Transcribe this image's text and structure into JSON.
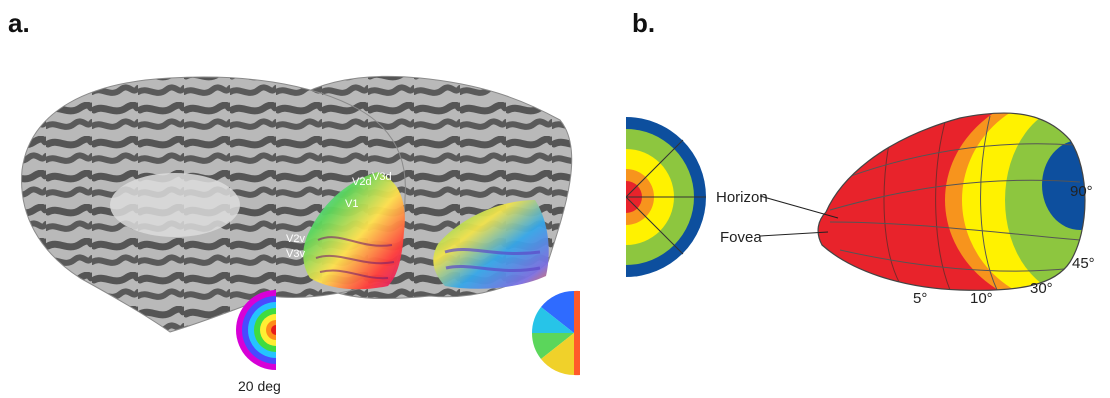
{
  "panels": {
    "a": {
      "label": "a.",
      "area_labels": [
        "V2d",
        "V3d",
        "V1",
        "V2v",
        "V3v"
      ],
      "scale_label": "20 deg"
    },
    "b": {
      "label": "b.",
      "annotations": {
        "horizon": "Horizon",
        "fovea": "Fovea"
      },
      "eccentricity_labels": [
        "5°",
        "10°",
        "30°"
      ],
      "angle_labels": [
        "90°",
        "45°"
      ]
    }
  },
  "colors": {
    "cortex_dark": "#4a4a4a",
    "cortex_light": "#b5b5b5",
    "red": "#e8232b",
    "orange": "#f7941d",
    "yellow": "#fff200",
    "green": "#8dc63f",
    "blue": "#0d4f9e"
  }
}
